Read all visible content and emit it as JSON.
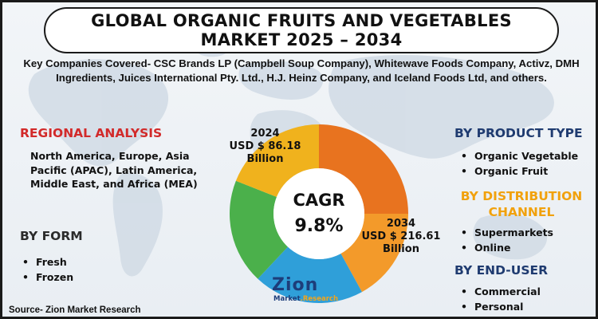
{
  "title": {
    "line1": "GLOBAL ORGANIC FRUITS AND VEGETABLES",
    "line2": "MARKET 2025 – 2034"
  },
  "companies": "Key Companies Covered- CSC Brands LP (Campbell Soup Company), Whitewave Foods Company, Activz, DMH Ingredients, Juices International Pty. Ltd., H.J. Heinz Company, and Iceland Foods Ltd, and others.",
  "regional": {
    "heading": "REGIONAL ANALYSIS",
    "text": "North America, Europe, Asia Pacific (APAC), Latin America, Middle East, and Africa (MEA)"
  },
  "by_form": {
    "heading": "BY FORM",
    "items": [
      "Fresh",
      "Frozen"
    ]
  },
  "by_product_type": {
    "heading": "BY PRODUCT TYPE",
    "items": [
      "Organic Vegetable",
      "Organic Fruit"
    ]
  },
  "by_distribution": {
    "heading_line1": "BY DISTRIBUTION",
    "heading_line2": "CHANNEL",
    "items": [
      "Supermarkets",
      "Online"
    ]
  },
  "by_end_user": {
    "heading": "BY END-USER",
    "items": [
      "Commercial",
      "Personal"
    ]
  },
  "market_2024": {
    "year": "2024",
    "value": "USD $ 86.18",
    "unit": "Billion"
  },
  "market_2034": {
    "year": "2034",
    "value": "USD $ 216.61",
    "unit": "Billion"
  },
  "cagr": {
    "label": "CAGR",
    "value": "9.8%"
  },
  "bullet_char": "•",
  "source": "Source- Zion Market Research",
  "logo": {
    "word": "Zion",
    "sub_part1": "Market",
    "sub_part2": ".Research"
  },
  "colors": {
    "heading_red": "#d22a2a",
    "heading_navy": "#1f3b70",
    "heading_orange": "#f1a10c",
    "donut": [
      "#e8731f",
      "#f39a2a",
      "#2f9fd9",
      "#4bb04b",
      "#f0b21d"
    ]
  },
  "donut_segments": [
    {
      "name": "segment-dark-orange",
      "fraction": 0.25,
      "color": "#e8731f"
    },
    {
      "name": "segment-orange",
      "fraction": 0.17,
      "color": "#f39a2a"
    },
    {
      "name": "segment-blue",
      "fraction": 0.2,
      "color": "#2f9fd9"
    },
    {
      "name": "segment-green",
      "fraction": 0.19,
      "color": "#4bb04b"
    },
    {
      "name": "segment-yellow",
      "fraction": 0.19,
      "color": "#f0b21d"
    }
  ]
}
